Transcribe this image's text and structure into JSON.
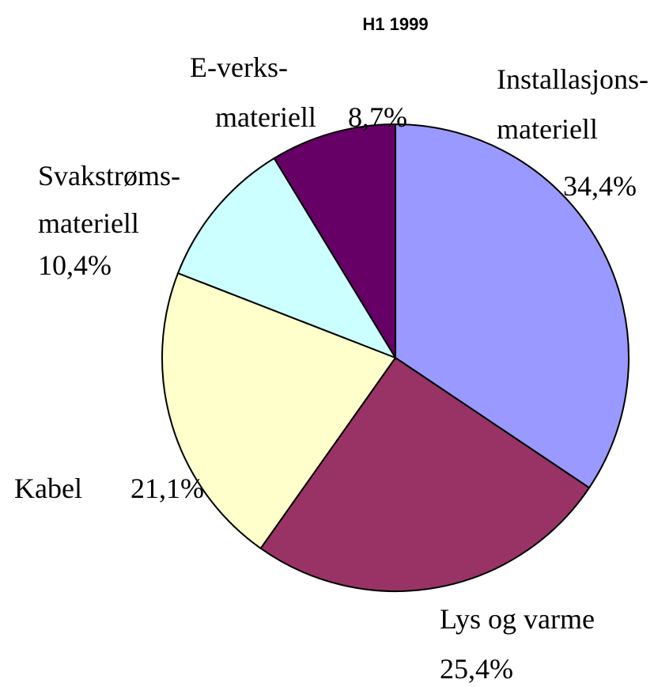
{
  "chart_data": {
    "type": "pie",
    "title": "H1 1999",
    "categories": [
      "Installasjons-\nmateriell",
      "Lys og varme",
      "Kabel",
      "Svakstrøms-\nmateriell",
      "E-verks-\nmateriell"
    ],
    "values": [
      34.4,
      25.4,
      21.1,
      10.4,
      8.7
    ],
    "value_labels": [
      "34,4%",
      "25,4%",
      "21,1%",
      "10,4%",
      "8,7%"
    ],
    "colors": [
      "#9999ff",
      "#993366",
      "#ffffcc",
      "#ccffff",
      "#660066"
    ]
  }
}
